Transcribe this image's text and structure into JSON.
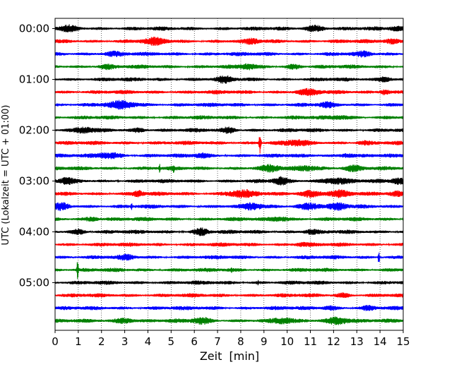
{
  "chart_data": {
    "type": "line",
    "title": "",
    "xlabel": "Zeit  [min]",
    "ylabel": "UTC (Lokalzeit = UTC + 01:00)",
    "xlim": [
      0,
      15
    ],
    "x_ticks": [
      "0",
      "1",
      "2",
      "3",
      "4",
      "5",
      "6",
      "7",
      "8",
      "9",
      "10",
      "11",
      "12",
      "13",
      "14",
      "15"
    ],
    "y_tick_labels": [
      "00:00",
      "01:00",
      "02:00",
      "03:00",
      "04:00",
      "05:00"
    ],
    "grid": "vertical dotted at each minute",
    "trace_interval_minutes": 15,
    "trace_count": 24,
    "color_cycle": [
      "#000000",
      "#ff0000",
      "#0000ff",
      "#008000"
    ],
    "traces": [
      {
        "start": "00:00",
        "color": "#000000",
        "events": [
          [
            0.6,
            0.55,
            0.35
          ],
          [
            11.2,
            0.6,
            0.4
          ],
          [
            14.7,
            0.4,
            0.3
          ]
        ]
      },
      {
        "start": "00:15",
        "color": "#ff0000",
        "events": [
          [
            4.3,
            0.6,
            0.5
          ],
          [
            8.5,
            0.4,
            0.3
          ],
          [
            14.5,
            0.4,
            0.3
          ]
        ]
      },
      {
        "start": "00:30",
        "color": "#0000ff",
        "events": [
          [
            2.5,
            0.4,
            0.4
          ],
          [
            13.3,
            0.4,
            0.3
          ]
        ]
      },
      {
        "start": "00:45",
        "color": "#008000",
        "events": [
          [
            2.2,
            0.4,
            0.3
          ],
          [
            8.3,
            0.5,
            0.3
          ],
          [
            10.3,
            0.4,
            0.3
          ]
        ]
      },
      {
        "start": "01:00",
        "color": "#000000",
        "events": [
          [
            7.3,
            0.6,
            0.3
          ],
          [
            14.2,
            0.5,
            0.3
          ]
        ]
      },
      {
        "start": "01:15",
        "color": "#ff0000",
        "events": [
          [
            10.9,
            0.5,
            0.5
          ],
          [
            14.2,
            0.6,
            0.2
          ]
        ]
      },
      {
        "start": "01:30",
        "color": "#0000ff",
        "events": [
          [
            2.9,
            0.7,
            0.6
          ],
          [
            11.7,
            0.4,
            0.3
          ]
        ]
      },
      {
        "start": "01:45",
        "color": "#008000",
        "events": [
          [
            12.3,
            0.35,
            0.4
          ]
        ]
      },
      {
        "start": "02:00",
        "color": "#000000",
        "events": [
          [
            1.3,
            0.5,
            0.4
          ],
          [
            3.6,
            0.35,
            0.3
          ],
          [
            7.5,
            0.5,
            0.3
          ]
        ]
      },
      {
        "start": "02:15",
        "color": "#ff0000",
        "events": [
          [
            8.83,
            2.6,
            0.04
          ],
          [
            10.4,
            0.5,
            0.5
          ],
          [
            13.3,
            0.3,
            0.3
          ]
        ]
      },
      {
        "start": "02:30",
        "color": "#0000ff",
        "events": [
          [
            2.3,
            0.6,
            0.5
          ],
          [
            6.3,
            0.4,
            0.3
          ],
          [
            12.6,
            0.4,
            0.3
          ]
        ]
      },
      {
        "start": "02:45",
        "color": "#008000",
        "events": [
          [
            4.5,
            0.8,
            0.03
          ],
          [
            5.1,
            0.8,
            0.03
          ],
          [
            9.3,
            0.6,
            0.4
          ],
          [
            10.9,
            0.5,
            0.5
          ],
          [
            12.8,
            0.5,
            0.4
          ]
        ]
      },
      {
        "start": "03:00",
        "color": "#000000",
        "events": [
          [
            0.5,
            0.6,
            0.3
          ],
          [
            9.7,
            0.7,
            0.3
          ],
          [
            12.1,
            0.6,
            0.6
          ],
          [
            14.8,
            0.6,
            0.3
          ]
        ]
      },
      {
        "start": "03:15",
        "color": "#ff0000",
        "events": [
          [
            3.6,
            0.6,
            0.2
          ],
          [
            8.0,
            0.7,
            0.6
          ],
          [
            11.0,
            0.6,
            0.5
          ],
          [
            12.2,
            0.6,
            0.5
          ],
          [
            14.7,
            0.5,
            0.3
          ]
        ]
      },
      {
        "start": "03:30",
        "color": "#0000ff",
        "events": [
          [
            0.3,
            0.7,
            0.3
          ],
          [
            3.3,
            0.5,
            0.03
          ],
          [
            8.5,
            0.6,
            0.4
          ],
          [
            11.0,
            0.7,
            0.5
          ],
          [
            12.2,
            0.6,
            0.4
          ]
        ]
      },
      {
        "start": "03:45",
        "color": "#008000",
        "events": [
          [
            1.6,
            0.4,
            0.3
          ],
          [
            9.7,
            0.45,
            0.4
          ]
        ]
      },
      {
        "start": "04:00",
        "color": "#000000",
        "events": [
          [
            1.0,
            0.45,
            0.3
          ],
          [
            6.3,
            0.7,
            0.3
          ],
          [
            11.0,
            0.4,
            0.3
          ]
        ]
      },
      {
        "start": "04:15",
        "color": "#ff0000",
        "events": [
          [
            10.6,
            0.35,
            0.3
          ]
        ]
      },
      {
        "start": "04:30",
        "color": "#0000ff",
        "events": [
          [
            3.1,
            0.4,
            0.3
          ],
          [
            13.95,
            1.6,
            0.03
          ]
        ]
      },
      {
        "start": "04:45",
        "color": "#008000",
        "events": [
          [
            0.97,
            2.3,
            0.03
          ],
          [
            7.6,
            0.6,
            0.02
          ]
        ]
      },
      {
        "start": "05:00",
        "color": "#000000",
        "events": [
          [
            8.75,
            0.5,
            0.02
          ]
        ]
      },
      {
        "start": "05:15",
        "color": "#ff0000",
        "events": [
          [
            12.4,
            0.35,
            0.3
          ]
        ]
      },
      {
        "start": "05:30",
        "color": "#0000ff",
        "events": [
          [
            11.8,
            0.35,
            0.3
          ],
          [
            13.5,
            0.35,
            0.3
          ]
        ]
      },
      {
        "start": "05:45",
        "color": "#008000",
        "events": [
          [
            3.0,
            0.5,
            0.4
          ],
          [
            6.3,
            0.6,
            0.4
          ],
          [
            9.8,
            0.5,
            0.4
          ],
          [
            12.2,
            0.8,
            0.5
          ]
        ]
      }
    ]
  }
}
